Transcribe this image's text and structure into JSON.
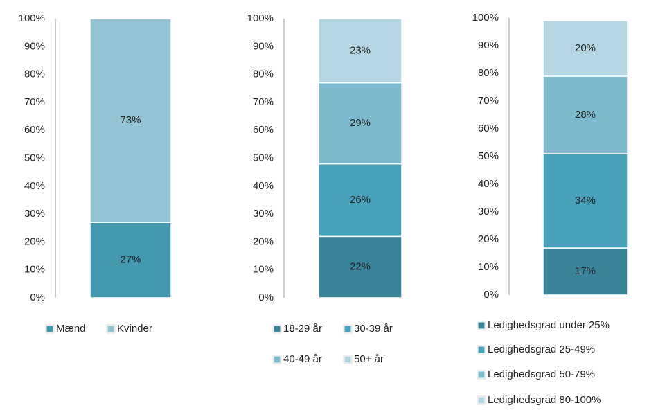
{
  "chart_data": [
    {
      "type": "bar",
      "stacked": true,
      "series": [
        {
          "name": "Mænd",
          "color": "#4398ad",
          "values": [
            27
          ],
          "value_labels": [
            "27%"
          ]
        },
        {
          "name": "Kvinder",
          "color": "#94c4d4",
          "values": [
            73
          ],
          "value_labels": [
            "73%"
          ]
        }
      ],
      "ylim": [
        0,
        100
      ],
      "yticks": [
        {
          "value": 0,
          "label": "0%"
        },
        {
          "value": 10,
          "label": "10%"
        },
        {
          "value": 20,
          "label": "20%"
        },
        {
          "value": 30,
          "label": "30%"
        },
        {
          "value": 40,
          "label": "40%"
        },
        {
          "value": 50,
          "label": "50%"
        },
        {
          "value": 60,
          "label": "60%"
        },
        {
          "value": 70,
          "label": "70%"
        },
        {
          "value": 80,
          "label": "80%"
        },
        {
          "value": 90,
          "label": "90%"
        },
        {
          "value": 100,
          "label": "100%"
        }
      ]
    },
    {
      "type": "bar",
      "stacked": true,
      "series": [
        {
          "name": "18-29 år",
          "color": "#3a8499",
          "values": [
            22
          ],
          "value_labels": [
            "22%"
          ]
        },
        {
          "name": "30-39 år",
          "color": "#47a1b8",
          "values": [
            26
          ],
          "value_labels": [
            "26%"
          ]
        },
        {
          "name": "40-49 år",
          "color": "#7ebace",
          "values": [
            29
          ],
          "value_labels": [
            "29%"
          ]
        },
        {
          "name": "50+ år",
          "color": "#b4d6e2",
          "values": [
            23
          ],
          "value_labels": [
            "23%"
          ]
        }
      ],
      "ylim": [
        0,
        100
      ],
      "yticks": [
        {
          "value": 0,
          "label": "0%"
        },
        {
          "value": 10,
          "label": "10%"
        },
        {
          "value": 20,
          "label": "20%"
        },
        {
          "value": 30,
          "label": "30%"
        },
        {
          "value": 40,
          "label": "40%"
        },
        {
          "value": 50,
          "label": "50%"
        },
        {
          "value": 60,
          "label": "60%"
        },
        {
          "value": 70,
          "label": "70%"
        },
        {
          "value": 80,
          "label": "80%"
        },
        {
          "value": 90,
          "label": "90%"
        },
        {
          "value": 100,
          "label": "100%"
        }
      ]
    },
    {
      "type": "bar",
      "stacked": true,
      "series": [
        {
          "name": "Ledighedsgrad under 25%",
          "color": "#3a8499",
          "values": [
            17
          ],
          "value_labels": [
            "17%"
          ]
        },
        {
          "name": "Ledighedsgrad 25-49%",
          "color": "#47a1b8",
          "values": [
            34
          ],
          "value_labels": [
            "34%"
          ]
        },
        {
          "name": "Ledighedsgrad 50-79%",
          "color": "#7ebace",
          "values": [
            28
          ],
          "value_labels": [
            "28%"
          ]
        },
        {
          "name": "Ledighedsgrad 80-100%",
          "color": "#b4d6e2",
          "values": [
            20
          ],
          "value_labels": [
            "20%"
          ]
        }
      ],
      "ylim": [
        0,
        100
      ],
      "yticks": [
        {
          "value": 0,
          "label": "0%"
        },
        {
          "value": 10,
          "label": "10%"
        },
        {
          "value": 20,
          "label": "20%"
        },
        {
          "value": 30,
          "label": "30%"
        },
        {
          "value": 40,
          "label": "40%"
        },
        {
          "value": 50,
          "label": "50%"
        },
        {
          "value": 60,
          "label": "60%"
        },
        {
          "value": 70,
          "label": "70%"
        },
        {
          "value": 80,
          "label": "80%"
        },
        {
          "value": 90,
          "label": "90%"
        },
        {
          "value": 100,
          "label": "100%"
        }
      ]
    }
  ]
}
